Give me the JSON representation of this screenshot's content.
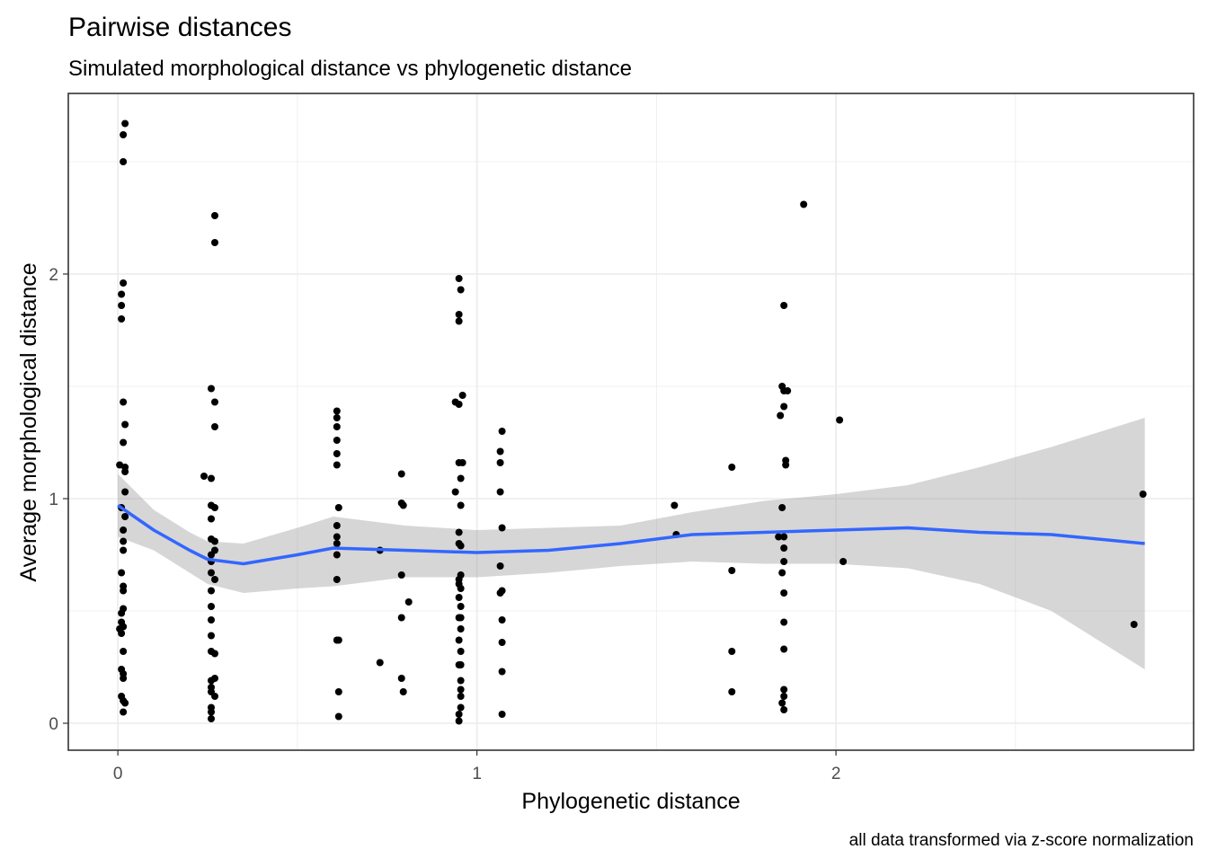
{
  "chart_data": {
    "type": "scatter",
    "title": "Pairwise distances",
    "subtitle": "Simulated morphological distance vs phylogenetic distance",
    "x_label": "Phylogenetic distance",
    "y_label": "Average morphological distance",
    "caption": "all data transformed via z-score normalization",
    "xlim": [
      -0.138,
      2.996
    ],
    "ylim": [
      -0.12,
      2.804
    ],
    "xticks": [
      0,
      1,
      2
    ],
    "yticks": [
      0,
      1,
      2
    ],
    "minor_xticks": [
      0.5,
      1.5,
      2.5
    ],
    "minor_yticks": [
      0.5,
      1.5,
      2.5
    ],
    "grid": true,
    "point_color": "#000000",
    "x": [
      0.02,
      0.015,
      0.015,
      0.015,
      0.01,
      0.01,
      0.01,
      0.015,
      0.02,
      0.015,
      0.005,
      0.02,
      0.02,
      0.02,
      0.01,
      0.02,
      0.015,
      0.015,
      0.015,
      0.01,
      0.015,
      0.015,
      0.015,
      0.01,
      0.01,
      0.015,
      0.005,
      0.01,
      0.015,
      0.01,
      0.015,
      0.015,
      0.01,
      0.015,
      0.02,
      0.015,
      0.27,
      0.27,
      0.26,
      0.27,
      0.27,
      0.24,
      0.26,
      0.26,
      0.27,
      0.26,
      0.26,
      0.27,
      0.27,
      0.26,
      0.26,
      0.26,
      0.27,
      0.26,
      0.26,
      0.26,
      0.26,
      0.26,
      0.27,
      0.27,
      0.26,
      0.26,
      0.26,
      0.27,
      0.26,
      0.26,
      0.26,
      0.61,
      0.61,
      0.61,
      0.61,
      0.61,
      0.61,
      0.615,
      0.61,
      0.61,
      0.61,
      0.61,
      0.61,
      0.61,
      0.615,
      0.615,
      0.615,
      0.73,
      0.73,
      0.79,
      0.79,
      0.795,
      0.79,
      0.79,
      0.79,
      0.795,
      0.81,
      0.95,
      0.955,
      0.95,
      0.95,
      0.96,
      0.94,
      0.95,
      0.96,
      0.95,
      0.955,
      0.94,
      0.955,
      0.95,
      0.95,
      0.955,
      0.955,
      0.95,
      0.95,
      0.955,
      0.95,
      0.955,
      0.955,
      0.95,
      0.955,
      0.95,
      0.955,
      0.955,
      0.95,
      0.955,
      0.955,
      0.955,
      0.955,
      0.95,
      0.95,
      1.07,
      1.065,
      1.065,
      1.065,
      1.07,
      1.065,
      1.07,
      1.065,
      1.07,
      1.07,
      1.07,
      1.07,
      1.55,
      1.555,
      1.71,
      1.71,
      1.71,
      1.71,
      1.855,
      1.85,
      1.855,
      1.865,
      1.855,
      1.845,
      1.86,
      1.86,
      1.85,
      1.84,
      1.855,
      1.855,
      1.855,
      1.85,
      1.855,
      1.855,
      1.855,
      1.855,
      1.855,
      1.85,
      1.855,
      1.91,
      2.01,
      2.02,
      2.83,
      2.855
    ],
    "y": [
      2.67,
      2.62,
      2.5,
      1.96,
      1.91,
      1.86,
      1.8,
      1.43,
      1.33,
      1.25,
      1.15,
      1.14,
      1.12,
      1.03,
      0.96,
      0.92,
      0.86,
      0.81,
      0.77,
      0.67,
      0.61,
      0.59,
      0.51,
      0.49,
      0.45,
      0.43,
      0.42,
      0.4,
      0.32,
      0.24,
      0.22,
      0.2,
      0.12,
      0.1,
      0.09,
      0.05,
      2.26,
      2.14,
      1.49,
      1.43,
      1.32,
      1.1,
      1.09,
      0.97,
      0.96,
      0.91,
      0.82,
      0.81,
      0.77,
      0.75,
      0.72,
      0.67,
      0.64,
      0.59,
      0.52,
      0.46,
      0.39,
      0.32,
      0.31,
      0.2,
      0.19,
      0.16,
      0.14,
      0.12,
      0.07,
      0.05,
      0.02,
      1.39,
      1.36,
      1.32,
      1.26,
      1.2,
      1.15,
      0.96,
      0.88,
      0.83,
      0.8,
      0.75,
      0.64,
      0.37,
      0.37,
      0.14,
      0.03,
      0.77,
      0.27,
      1.11,
      0.98,
      0.97,
      0.66,
      0.47,
      0.2,
      0.14,
      0.54,
      1.98,
      1.93,
      1.82,
      1.79,
      1.46,
      1.43,
      1.42,
      1.16,
      1.16,
      1.09,
      1.03,
      0.97,
      0.85,
      0.8,
      0.79,
      0.66,
      0.64,
      0.62,
      0.6,
      0.56,
      0.52,
      0.47,
      0.47,
      0.42,
      0.37,
      0.32,
      0.26,
      0.26,
      0.19,
      0.15,
      0.12,
      0.07,
      0.04,
      0.01,
      1.3,
      1.21,
      1.16,
      1.03,
      0.87,
      0.7,
      0.59,
      0.58,
      0.46,
      0.36,
      0.23,
      0.04,
      0.97,
      0.84,
      1.14,
      0.68,
      0.32,
      0.14,
      1.86,
      1.5,
      1.48,
      1.48,
      1.41,
      1.37,
      1.17,
      1.15,
      0.96,
      0.83,
      0.83,
      0.78,
      0.72,
      0.67,
      0.58,
      0.45,
      0.33,
      0.15,
      0.12,
      0.09,
      0.06,
      2.31,
      1.35,
      0.72,
      0.44,
      1.02
    ],
    "smooth": {
      "color": "#3366FF",
      "band_color": "#999999",
      "x": [
        0,
        0.1,
        0.2,
        0.25,
        0.35,
        0.5,
        0.6,
        0.8,
        1.0,
        1.2,
        1.4,
        1.6,
        1.8,
        2.0,
        2.2,
        2.4,
        2.6,
        2.86
      ],
      "y": [
        0.97,
        0.86,
        0.77,
        0.73,
        0.71,
        0.75,
        0.78,
        0.77,
        0.76,
        0.77,
        0.8,
        0.84,
        0.85,
        0.86,
        0.87,
        0.85,
        0.84,
        0.8
      ],
      "upper": [
        1.11,
        0.95,
        0.85,
        0.81,
        0.8,
        0.87,
        0.92,
        0.88,
        0.86,
        0.87,
        0.88,
        0.94,
        0.99,
        1.02,
        1.06,
        1.14,
        1.23,
        1.36
      ],
      "lower": [
        0.83,
        0.77,
        0.67,
        0.62,
        0.58,
        0.6,
        0.61,
        0.65,
        0.65,
        0.67,
        0.7,
        0.72,
        0.71,
        0.71,
        0.69,
        0.62,
        0.5,
        0.24
      ]
    }
  }
}
